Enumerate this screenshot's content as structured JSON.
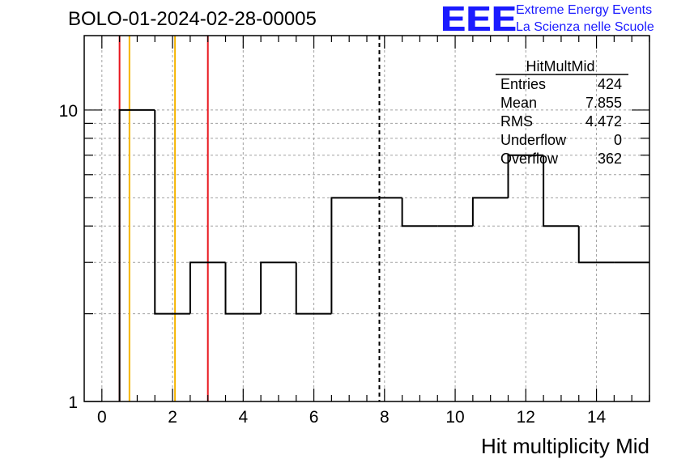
{
  "header": {
    "title": "BOLO-01-2024-02-28-00005",
    "logo_text": "EEE",
    "logo_line1": "Extreme Energy Events",
    "logo_line2": "La Scienza nelle Scuole"
  },
  "colors": {
    "logo": "#1a1aff",
    "red_line": "#e8141c",
    "orange_line": "#f5b400",
    "grid": "#a0a0a0"
  },
  "chart_data": {
    "type": "bar",
    "histogram": "step",
    "title": "BOLO-01-2024-02-28-00005",
    "xlabel": "Hit multiplicity Mid",
    "ylabel": "",
    "xlim": [
      -0.5,
      15.5
    ],
    "ylim": [
      1,
      18
    ],
    "y_scale": "log",
    "grid": true,
    "bin_width": 1,
    "bin_centers": [
      1,
      2,
      3,
      4,
      5,
      6,
      7,
      8,
      9,
      10,
      11,
      12,
      13,
      14,
      15
    ],
    "values": [
      10,
      2,
      3,
      2,
      3,
      2,
      5,
      5,
      4,
      4,
      5,
      7,
      4,
      3,
      3
    ],
    "x_ticks": [
      0,
      2,
      4,
      6,
      8,
      10,
      12,
      14
    ],
    "y_ticks": [
      1,
      10
    ],
    "vertical_lines": [
      {
        "x": 0.5,
        "color": "red"
      },
      {
        "x": 0.78,
        "color": "orange"
      },
      {
        "x": 2.07,
        "color": "orange"
      },
      {
        "x": 3.0,
        "color": "red"
      },
      {
        "x": 7.855,
        "color": "black",
        "style": "dashed"
      }
    ],
    "stats_box": {
      "name": "HitMultMid",
      "rows": [
        {
          "label": "Entries",
          "value": "424"
        },
        {
          "label": "Mean",
          "value": "7.855"
        },
        {
          "label": "RMS",
          "value": "4.472"
        },
        {
          "label": "Underflow",
          "value": "0"
        },
        {
          "label": "Overflow",
          "value": "362"
        }
      ]
    }
  }
}
